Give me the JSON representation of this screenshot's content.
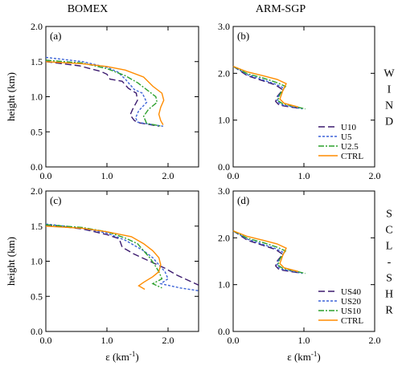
{
  "column_titles": [
    "BOMEX",
    "ARM-SGP"
  ],
  "row_labels": [
    "WIND",
    "SCL-SHR"
  ],
  "ylabel": "height (km)",
  "xlabel": "ε (km",
  "xlabel_sup": "-1",
  "xlabel_close": ")",
  "colors": {
    "dark_purple": "#3b1a6e",
    "blue": "#3d64d8",
    "green": "#2ca02c",
    "orange": "#ff8c00"
  },
  "chart_data": [
    {
      "panel": "(a)",
      "type": "line",
      "xlim": [
        0,
        2.5
      ],
      "ylim": [
        0,
        2.0
      ],
      "xticks": [
        0.0,
        1.0,
        2.0
      ],
      "yticks": [
        0.0,
        0.5,
        1.0,
        1.5,
        2.0
      ],
      "legend": "none",
      "series": [
        {
          "name": "U10",
          "color": "#3b1a6e",
          "dash": "8,4",
          "points": [
            [
              0,
              1.5
            ],
            [
              0.55,
              1.44
            ],
            [
              0.9,
              1.36
            ],
            [
              1.0,
              1.32
            ],
            [
              1.05,
              1.25
            ],
            [
              1.25,
              1.22
            ],
            [
              1.35,
              1.12
            ],
            [
              1.48,
              1.05
            ],
            [
              1.5,
              0.95
            ],
            [
              1.42,
              0.82
            ],
            [
              1.38,
              0.74
            ],
            [
              1.45,
              0.66
            ],
            [
              1.52,
              0.63
            ],
            [
              1.85,
              0.58
            ]
          ]
        },
        {
          "name": "U5",
          "color": "#3d64d8",
          "dash": "3,2",
          "points": [
            [
              0,
              1.56
            ],
            [
              0.6,
              1.5
            ],
            [
              1.0,
              1.42
            ],
            [
              1.18,
              1.35
            ],
            [
              1.3,
              1.25
            ],
            [
              1.45,
              1.1
            ],
            [
              1.58,
              1.05
            ],
            [
              1.65,
              0.92
            ],
            [
              1.52,
              0.8
            ],
            [
              1.47,
              0.7
            ],
            [
              1.5,
              0.64
            ],
            [
              1.55,
              0.63
            ],
            [
              1.92,
              0.58
            ]
          ]
        },
        {
          "name": "U2.5",
          "color": "#2ca02c",
          "dash": "7,2,2,2",
          "points": [
            [
              0,
              1.52
            ],
            [
              0.6,
              1.48
            ],
            [
              1.0,
              1.4
            ],
            [
              1.3,
              1.3
            ],
            [
              1.5,
              1.2
            ],
            [
              1.65,
              1.1
            ],
            [
              1.8,
              1.0
            ],
            [
              1.82,
              0.92
            ],
            [
              1.68,
              0.82
            ],
            [
              1.6,
              0.72
            ],
            [
              1.65,
              0.62
            ],
            [
              1.9,
              0.58
            ]
          ]
        },
        {
          "name": "CTRL",
          "color": "#ff8c00",
          "dash": "",
          "points": [
            [
              0,
              1.5
            ],
            [
              0.6,
              1.47
            ],
            [
              1.0,
              1.43
            ],
            [
              1.3,
              1.38
            ],
            [
              1.6,
              1.28
            ],
            [
              1.75,
              1.15
            ],
            [
              1.9,
              1.05
            ],
            [
              1.93,
              0.95
            ],
            [
              1.88,
              0.85
            ],
            [
              1.85,
              0.75
            ],
            [
              1.88,
              0.66
            ],
            [
              1.92,
              0.6
            ]
          ]
        }
      ]
    },
    {
      "panel": "(b)",
      "type": "line",
      "xlim": [
        0,
        2.0
      ],
      "ylim": [
        0,
        3.0
      ],
      "xticks": [
        0.0,
        1.0,
        2.0
      ],
      "yticks": [
        0.0,
        1.0,
        2.0,
        3.0
      ],
      "legend": "bottom-right",
      "series": [
        {
          "name": "U10",
          "color": "#3b1a6e",
          "dash": "8,4",
          "points": [
            [
              0,
              2.15
            ],
            [
              0.2,
              1.95
            ],
            [
              0.4,
              1.85
            ],
            [
              0.6,
              1.75
            ],
            [
              0.7,
              1.65
            ],
            [
              0.62,
              1.5
            ],
            [
              0.6,
              1.4
            ],
            [
              0.65,
              1.32
            ],
            [
              0.8,
              1.28
            ],
            [
              0.95,
              1.25
            ]
          ]
        },
        {
          "name": "U5",
          "color": "#3d64d8",
          "dash": "3,2",
          "points": [
            [
              0,
              2.15
            ],
            [
              0.2,
              1.97
            ],
            [
              0.4,
              1.87
            ],
            [
              0.6,
              1.77
            ],
            [
              0.72,
              1.68
            ],
            [
              0.64,
              1.52
            ],
            [
              0.62,
              1.4
            ],
            [
              0.68,
              1.33
            ],
            [
              0.85,
              1.28
            ],
            [
              0.98,
              1.24
            ]
          ]
        },
        {
          "name": "U2.5",
          "color": "#2ca02c",
          "dash": "7,2,2,2",
          "points": [
            [
              0,
              2.15
            ],
            [
              0.2,
              1.99
            ],
            [
              0.42,
              1.9
            ],
            [
              0.62,
              1.8
            ],
            [
              0.74,
              1.72
            ],
            [
              0.66,
              1.55
            ],
            [
              0.63,
              1.42
            ],
            [
              0.7,
              1.35
            ],
            [
              0.9,
              1.28
            ],
            [
              1.02,
              1.24
            ]
          ]
        },
        {
          "name": "CTRL",
          "color": "#ff8c00",
          "dash": "",
          "points": [
            [
              0,
              2.15
            ],
            [
              0.2,
              2.03
            ],
            [
              0.42,
              1.95
            ],
            [
              0.62,
              1.87
            ],
            [
              0.75,
              1.78
            ],
            [
              0.7,
              1.62
            ],
            [
              0.66,
              1.45
            ],
            [
              0.72,
              1.36
            ],
            [
              0.92,
              1.28
            ]
          ]
        }
      ]
    },
    {
      "panel": "(c)",
      "type": "line",
      "xlim": [
        0,
        2.5
      ],
      "ylim": [
        0,
        2.0
      ],
      "xticks": [
        0.0,
        1.0,
        2.0
      ],
      "yticks": [
        0.0,
        0.5,
        1.0,
        1.5,
        2.0
      ],
      "legend": "none",
      "series": [
        {
          "name": "US40",
          "color": "#3b1a6e",
          "dash": "8,4",
          "points": [
            [
              0,
              1.52
            ],
            [
              0.6,
              1.46
            ],
            [
              1.0,
              1.38
            ],
            [
              1.2,
              1.32
            ],
            [
              1.25,
              1.2
            ],
            [
              1.45,
              1.1
            ],
            [
              1.7,
              1.0
            ],
            [
              1.95,
              0.9
            ],
            [
              2.15,
              0.8
            ],
            [
              2.35,
              0.72
            ],
            [
              2.5,
              0.66
            ]
          ]
        },
        {
          "name": "US20",
          "color": "#3d64d8",
          "dash": "3,2",
          "points": [
            [
              0,
              1.53
            ],
            [
              0.6,
              1.47
            ],
            [
              1.0,
              1.4
            ],
            [
              1.3,
              1.3
            ],
            [
              1.6,
              1.15
            ],
            [
              1.75,
              1.05
            ],
            [
              1.85,
              0.95
            ],
            [
              1.95,
              0.85
            ],
            [
              2.0,
              0.75
            ],
            [
              1.88,
              0.68
            ],
            [
              2.2,
              0.62
            ],
            [
              2.5,
              0.58
            ]
          ]
        },
        {
          "name": "US10",
          "color": "#2ca02c",
          "dash": "7,2,2,2",
          "points": [
            [
              0,
              1.52
            ],
            [
              0.6,
              1.48
            ],
            [
              1.0,
              1.42
            ],
            [
              1.3,
              1.33
            ],
            [
              1.5,
              1.25
            ],
            [
              1.6,
              1.15
            ],
            [
              1.7,
              1.05
            ],
            [
              1.78,
              0.95
            ],
            [
              1.85,
              0.85
            ],
            [
              1.9,
              0.75
            ],
            [
              1.75,
              0.68
            ],
            [
              1.9,
              0.62
            ]
          ]
        },
        {
          "name": "CTRL",
          "color": "#ff8c00",
          "dash": "",
          "points": [
            [
              0,
              1.5
            ],
            [
              0.6,
              1.47
            ],
            [
              1.0,
              1.42
            ],
            [
              1.4,
              1.35
            ],
            [
              1.6,
              1.25
            ],
            [
              1.75,
              1.15
            ],
            [
              1.85,
              1.05
            ],
            [
              1.88,
              0.95
            ],
            [
              1.85,
              0.85
            ],
            [
              1.75,
              0.78
            ],
            [
              1.6,
              0.7
            ],
            [
              1.52,
              0.65
            ],
            [
              1.62,
              0.6
            ]
          ]
        }
      ]
    },
    {
      "panel": "(d)",
      "type": "line",
      "xlim": [
        0,
        2.0
      ],
      "ylim": [
        0,
        3.0
      ],
      "xticks": [
        0.0,
        1.0,
        2.0
      ],
      "yticks": [
        0.0,
        1.0,
        2.0,
        3.0
      ],
      "legend": "bottom-right",
      "series": [
        {
          "name": "US40",
          "color": "#3b1a6e",
          "dash": "8,4",
          "points": [
            [
              0,
              2.15
            ],
            [
              0.2,
              1.95
            ],
            [
              0.4,
              1.85
            ],
            [
              0.6,
              1.75
            ],
            [
              0.7,
              1.65
            ],
            [
              0.62,
              1.5
            ],
            [
              0.6,
              1.4
            ],
            [
              0.65,
              1.32
            ],
            [
              0.8,
              1.28
            ],
            [
              0.95,
              1.25
            ]
          ]
        },
        {
          "name": "US20",
          "color": "#3d64d8",
          "dash": "3,2",
          "points": [
            [
              0,
              2.15
            ],
            [
              0.2,
              1.97
            ],
            [
              0.4,
              1.87
            ],
            [
              0.6,
              1.77
            ],
            [
              0.72,
              1.68
            ],
            [
              0.64,
              1.52
            ],
            [
              0.62,
              1.4
            ],
            [
              0.68,
              1.33
            ],
            [
              0.85,
              1.28
            ],
            [
              0.98,
              1.24
            ]
          ]
        },
        {
          "name": "US10",
          "color": "#2ca02c",
          "dash": "7,2,2,2",
          "points": [
            [
              0,
              2.15
            ],
            [
              0.2,
              1.99
            ],
            [
              0.42,
              1.9
            ],
            [
              0.62,
              1.8
            ],
            [
              0.74,
              1.72
            ],
            [
              0.66,
              1.55
            ],
            [
              0.63,
              1.42
            ],
            [
              0.7,
              1.35
            ],
            [
              0.9,
              1.28
            ],
            [
              1.02,
              1.24
            ]
          ]
        },
        {
          "name": "CTRL",
          "color": "#ff8c00",
          "dash": "",
          "points": [
            [
              0,
              2.15
            ],
            [
              0.2,
              2.03
            ],
            [
              0.42,
              1.95
            ],
            [
              0.62,
              1.87
            ],
            [
              0.75,
              1.78
            ],
            [
              0.7,
              1.62
            ],
            [
              0.66,
              1.45
            ],
            [
              0.72,
              1.36
            ],
            [
              0.92,
              1.28
            ]
          ]
        }
      ]
    }
  ]
}
